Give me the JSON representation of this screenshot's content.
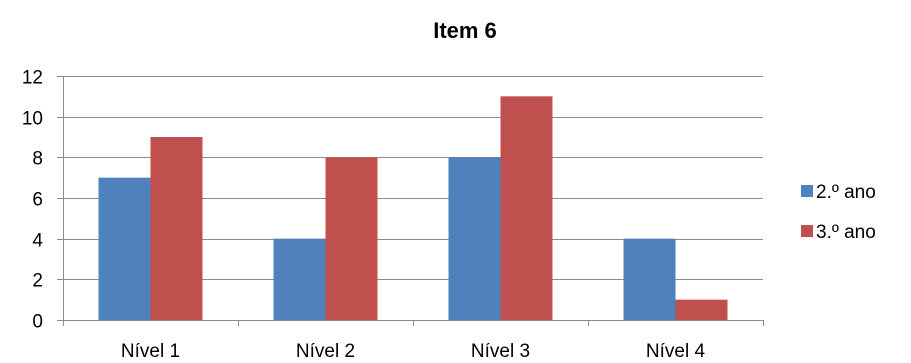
{
  "chart_data": {
    "type": "bar",
    "title": "Item 6",
    "categories": [
      "Nível 1",
      "Nível 2",
      "Nível 3",
      "Nível 4"
    ],
    "series": [
      {
        "name": "2.º ano",
        "values": [
          7,
          4,
          8,
          4
        ],
        "color": "#4f81bd"
      },
      {
        "name": "3.º ano",
        "values": [
          9,
          8,
          11,
          1
        ],
        "color": "#c0504d"
      }
    ],
    "xlabel": "",
    "ylabel": "",
    "ylim": [
      0,
      12
    ],
    "yticks": [
      0,
      2,
      4,
      6,
      8,
      10,
      12
    ],
    "grid": true,
    "legend_position": "right"
  }
}
